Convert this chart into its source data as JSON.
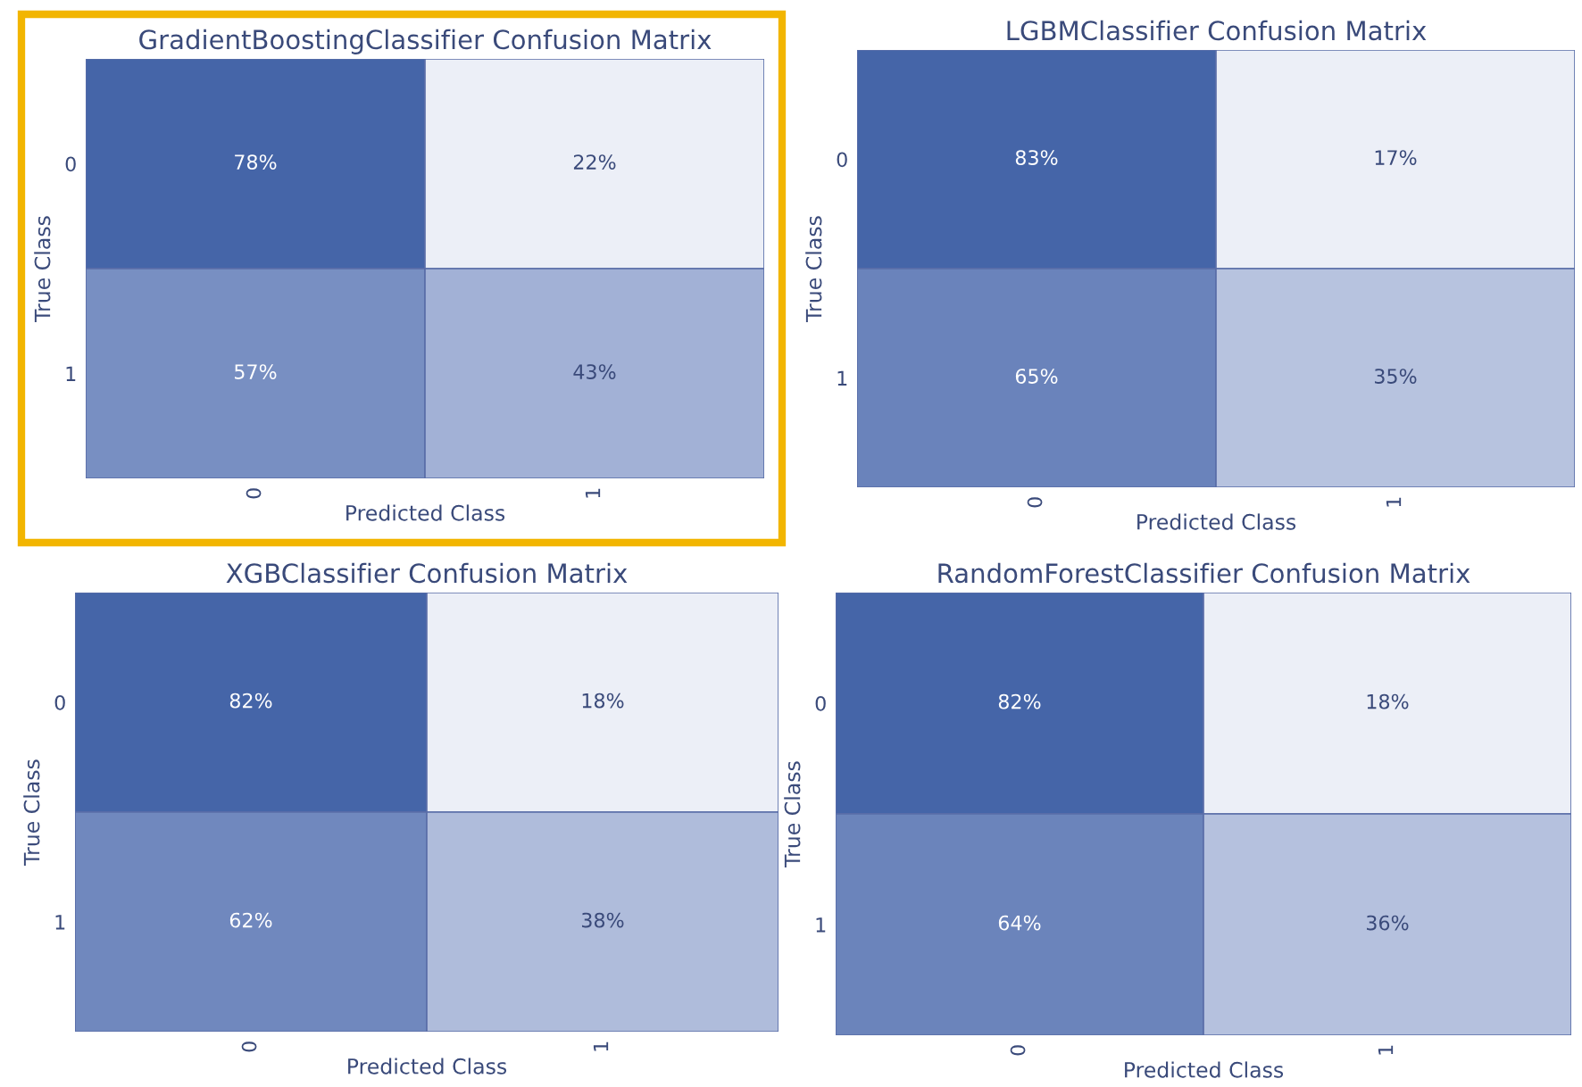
{
  "chart_data": [
    {
      "type": "heatmap",
      "title": "GradientBoostingClassifier Confusion Matrix",
      "xlabel": "Predicted Class",
      "ylabel": "True Class",
      "categories": [
        "0",
        "1"
      ],
      "y_categories": [
        "0",
        "1"
      ],
      "cells": [
        [
          78,
          22
        ],
        [
          57,
          43
        ]
      ],
      "cell_labels": [
        [
          "78%",
          "22%"
        ],
        [
          "57%",
          "43%"
        ]
      ]
    },
    {
      "type": "heatmap",
      "title": "LGBMClassifier Confusion Matrix",
      "xlabel": "Predicted Class",
      "ylabel": "True Class",
      "categories": [
        "0",
        "1"
      ],
      "y_categories": [
        "0",
        "1"
      ],
      "cells": [
        [
          83,
          17
        ],
        [
          65,
          35
        ]
      ],
      "cell_labels": [
        [
          "83%",
          "17%"
        ],
        [
          "65%",
          "35%"
        ]
      ]
    },
    {
      "type": "heatmap",
      "title": "XGBClassifier Confusion Matrix",
      "xlabel": "Predicted Class",
      "ylabel": "True Class",
      "categories": [
        "0",
        "1"
      ],
      "y_categories": [
        "0",
        "1"
      ],
      "cells": [
        [
          82,
          18
        ],
        [
          62,
          38
        ]
      ],
      "cell_labels": [
        [
          "82%",
          "18%"
        ],
        [
          "62%",
          "38%"
        ]
      ]
    },
    {
      "type": "heatmap",
      "title": "RandomForestClassifier Confusion Matrix",
      "xlabel": "Predicted Class",
      "ylabel": "True Class",
      "categories": [
        "0",
        "1"
      ],
      "y_categories": [
        "0",
        "1"
      ],
      "cells": [
        [
          82,
          18
        ],
        [
          64,
          36
        ]
      ],
      "cell_labels": [
        [
          "82%",
          "18%"
        ],
        [
          "64%",
          "36%"
        ]
      ]
    }
  ]
}
